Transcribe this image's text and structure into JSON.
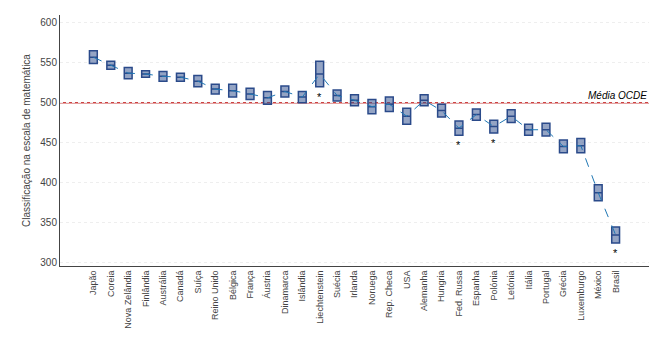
{
  "chart_data": {
    "type": "box",
    "categories": [
      "Japão",
      "Coreia",
      "Nova Zelândia",
      "Finlândia",
      "Austrália",
      "Canadá",
      "Suíça",
      "Reino Unido",
      "Bélgica",
      "França",
      "Áustria",
      "Dinamarca",
      "Islândia",
      "Liechtenstein",
      "Suécia",
      "Irlanda",
      "Noruega",
      "Rep. Checa",
      "USA",
      "Alemanha",
      "Hungria",
      "Fed. Russa",
      "Espanha",
      "Polónia",
      "Letónia",
      "Itália",
      "Portugal",
      "Grécia",
      "Luxemburgo",
      "México",
      "Brasil"
    ],
    "values": [
      557,
      547,
      537,
      536,
      533,
      532,
      527,
      517,
      515,
      511,
      506,
      514,
      507,
      536,
      509,
      503,
      495,
      498,
      483,
      503,
      490,
      468,
      485,
      470,
      483,
      466,
      466,
      445,
      446,
      387,
      334
    ],
    "ci_upper": [
      565,
      552,
      544,
      540,
      539,
      537,
      534,
      523,
      523,
      518,
      514,
      521,
      514,
      552,
      516,
      510,
      504,
      507,
      493,
      510,
      498,
      477,
      492,
      478,
      491,
      473,
      474,
      453,
      455,
      397,
      344
    ],
    "ci_lower": [
      549,
      542,
      530,
      532,
      527,
      527,
      520,
      511,
      507,
      504,
      498,
      507,
      500,
      520,
      502,
      496,
      486,
      489,
      473,
      496,
      482,
      459,
      478,
      462,
      475,
      459,
      458,
      437,
      437,
      377,
      324
    ],
    "color": "#2a4a8a",
    "line_style": "dashed",
    "ylabel": "Classificação na escala de matemática",
    "ylim": [
      295,
      610
    ],
    "yticks": [
      300,
      350,
      400,
      450,
      500,
      550,
      600
    ],
    "grid": true,
    "reference": {
      "value": 500,
      "label": "Média OCDE",
      "color": "#cc4444"
    },
    "annotations": [
      {
        "category": "Liechtenstein",
        "text": "*"
      },
      {
        "category": "Fed. Russa",
        "text": "*"
      },
      {
        "category": "Polónia",
        "text": "*"
      },
      {
        "category": "Brasil",
        "text": "*"
      }
    ]
  }
}
